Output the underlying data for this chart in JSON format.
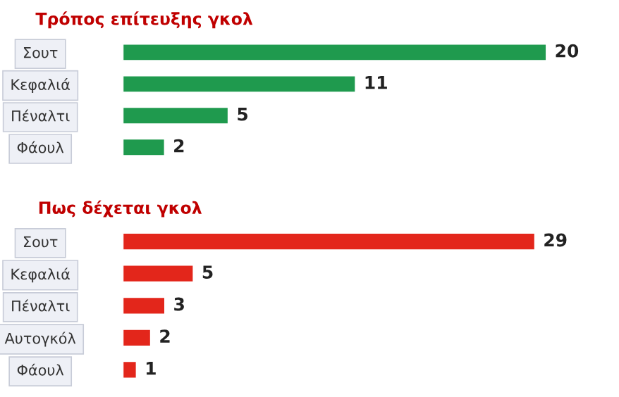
{
  "chart_data": [
    {
      "type": "bar",
      "orientation": "horizontal",
      "title": "Τρόπος επίτευξης γκολ",
      "categories": [
        "Σουτ",
        "Κεφαλιά",
        "Πέναλτι",
        "Φάουλ"
      ],
      "values": [
        20,
        11,
        5,
        2
      ],
      "color": "#1f9a4e",
      "data_labels": true,
      "grid": false,
      "legend": false,
      "tick_labels": "y"
    },
    {
      "type": "bar",
      "orientation": "horizontal",
      "title": "Πως δέχεται γκολ",
      "categories": [
        "Σουτ",
        "Κεφαλιά",
        "Πέναλτι",
        "Αυτογκόλ",
        "Φάουλ"
      ],
      "values": [
        29,
        5,
        3,
        2,
        1
      ],
      "color": "#e3261b",
      "data_labels": true,
      "grid": false,
      "legend": false,
      "tick_labels": "y"
    }
  ]
}
